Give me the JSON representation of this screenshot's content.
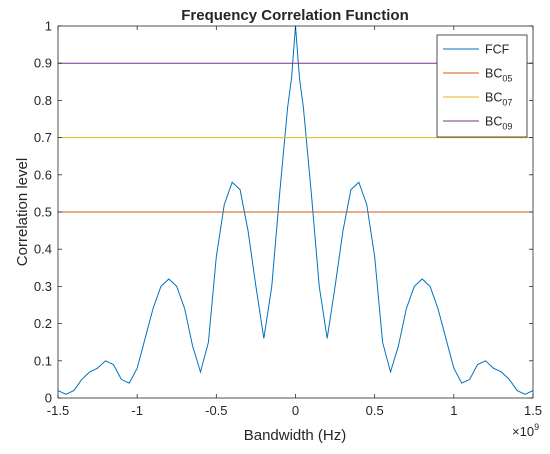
{
  "chart_data": {
    "type": "line",
    "title": "Frequency Correlation Function",
    "xlabel": "Bandwidth (Hz)",
    "ylabel": "Correlation level",
    "x_exponent_label": "×10",
    "x_exponent_power": "9",
    "xlim": [
      -1.5,
      1.5
    ],
    "ylim": [
      0,
      1
    ],
    "xticks": [
      -1.5,
      -1,
      -0.5,
      0,
      0.5,
      1,
      1.5
    ],
    "xtick_labels": [
      "-1.5",
      "-1",
      "-0.5",
      "0",
      "0.5",
      "1",
      "1.5"
    ],
    "yticks": [
      0,
      0.1,
      0.2,
      0.3,
      0.4,
      0.5,
      0.6,
      0.7,
      0.8,
      0.9,
      1
    ],
    "ytick_labels": [
      "0",
      "0.1",
      "0.2",
      "0.3",
      "0.4",
      "0.5",
      "0.6",
      "0.7",
      "0.8",
      "0.9",
      "1"
    ],
    "grid": false,
    "legend_position": "top-right",
    "series": [
      {
        "name": "FCF",
        "name_sub": "",
        "color": "#0072BD",
        "x": [
          -1.5,
          -1.45,
          -1.4,
          -1.35,
          -1.3,
          -1.25,
          -1.2,
          -1.15,
          -1.1,
          -1.05,
          -1.0,
          -0.95,
          -0.9,
          -0.85,
          -0.8,
          -0.75,
          -0.7,
          -0.65,
          -0.6,
          -0.55,
          -0.5,
          -0.45,
          -0.4,
          -0.35,
          -0.3,
          -0.25,
          -0.2,
          -0.15,
          -0.1,
          -0.05,
          -0.025,
          0.0,
          0.025,
          0.05,
          0.1,
          0.15,
          0.2,
          0.25,
          0.3,
          0.35,
          0.4,
          0.45,
          0.5,
          0.55,
          0.6,
          0.65,
          0.7,
          0.75,
          0.8,
          0.85,
          0.9,
          0.95,
          1.0,
          1.05,
          1.1,
          1.15,
          1.2,
          1.25,
          1.3,
          1.35,
          1.4,
          1.45,
          1.5
        ],
        "y": [
          0.02,
          0.01,
          0.02,
          0.05,
          0.07,
          0.08,
          0.1,
          0.09,
          0.05,
          0.04,
          0.08,
          0.16,
          0.24,
          0.3,
          0.32,
          0.3,
          0.24,
          0.14,
          0.07,
          0.15,
          0.38,
          0.52,
          0.58,
          0.56,
          0.45,
          0.3,
          0.16,
          0.3,
          0.55,
          0.78,
          0.86,
          1.0,
          0.86,
          0.78,
          0.55,
          0.3,
          0.16,
          0.3,
          0.45,
          0.56,
          0.58,
          0.52,
          0.38,
          0.15,
          0.07,
          0.14,
          0.24,
          0.3,
          0.32,
          0.3,
          0.24,
          0.16,
          0.08,
          0.04,
          0.05,
          0.09,
          0.1,
          0.08,
          0.07,
          0.05,
          0.02,
          0.01,
          0.02
        ]
      },
      {
        "name": "BC",
        "name_sub": "05",
        "color": "#D95319",
        "x": [
          -1.5,
          1.5
        ],
        "y": [
          0.5,
          0.5
        ]
      },
      {
        "name": "BC",
        "name_sub": "07",
        "color": "#EDB120",
        "x": [
          -1.5,
          1.5
        ],
        "y": [
          0.7,
          0.7
        ]
      },
      {
        "name": "BC",
        "name_sub": "09",
        "color": "#7E2F8E",
        "x": [
          -1.5,
          1.5
        ],
        "y": [
          0.9,
          0.9
        ]
      }
    ]
  }
}
